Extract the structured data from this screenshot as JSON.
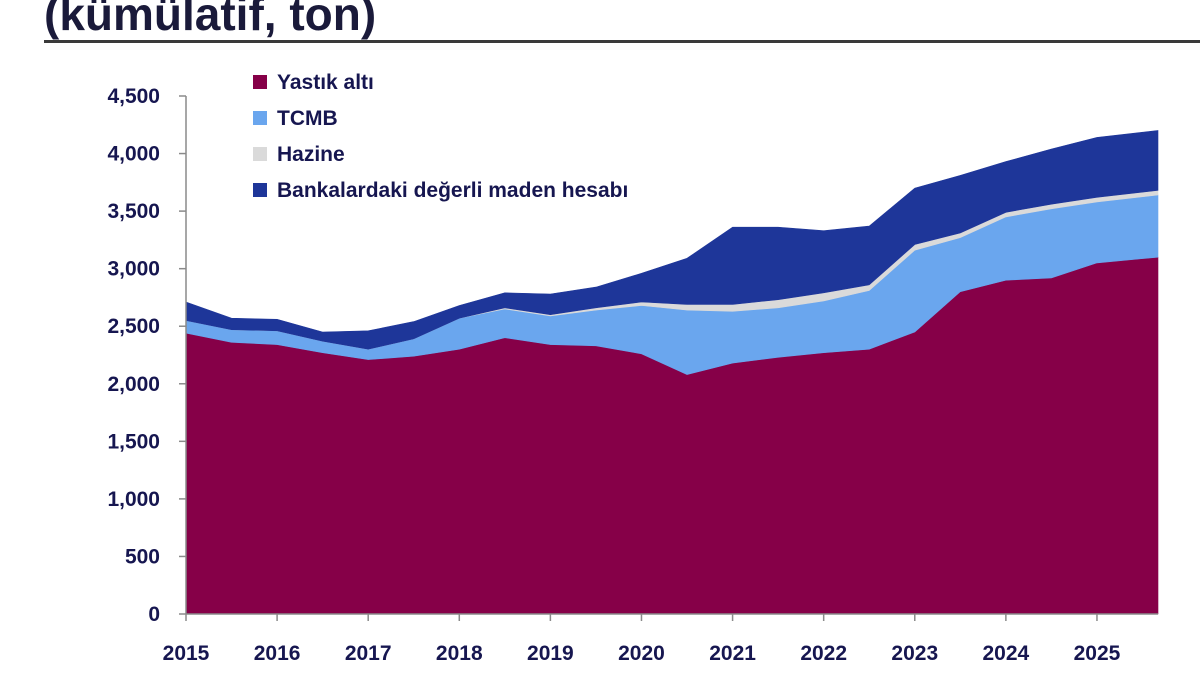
{
  "title": "(kümülatif, ton)",
  "colors": {
    "yastik": "#860048",
    "tcmb": "#6aa6ee",
    "hazine": "#dadada",
    "banka": "#1e3699",
    "axis_text": "#161650",
    "axis_line": "#8a8a8a"
  },
  "chart_data": {
    "type": "area",
    "stacked": true,
    "title": "(kümülatif, ton)",
    "xlabel": "",
    "ylabel": "",
    "xlim": [
      2015.0,
      2025.67
    ],
    "ylim": [
      0,
      4500
    ],
    "y_ticks": [
      0,
      500,
      1000,
      1500,
      2000,
      2500,
      3000,
      3500,
      4000,
      4500
    ],
    "y_tick_labels": [
      "0",
      "500",
      "1,000",
      "1,500",
      "2,000",
      "2,500",
      "3,000",
      "3,500",
      "4,000",
      "4,500"
    ],
    "x_ticks": [
      2015,
      2016,
      2017,
      2018,
      2019,
      2020,
      2021,
      2022,
      2023,
      2024,
      2025
    ],
    "x_tick_labels": [
      "2015",
      "2016",
      "2017",
      "2018",
      "2019",
      "2020",
      "2021",
      "2022",
      "2023",
      "2024",
      "2025"
    ],
    "legend_position": "top-left",
    "grid": false,
    "x": [
      2015.0,
      2015.5,
      2016.0,
      2016.5,
      2017.0,
      2017.5,
      2018.0,
      2018.5,
      2019.0,
      2019.5,
      2020.0,
      2020.5,
      2021.0,
      2021.5,
      2022.0,
      2022.5,
      2023.0,
      2023.5,
      2024.0,
      2024.5,
      2025.0,
      2025.67
    ],
    "series": [
      {
        "name": "Yastık altı",
        "key": "yastik",
        "values": [
          2440,
          2360,
          2340,
          2270,
          2210,
          2240,
          2300,
          2400,
          2340,
          2330,
          2260,
          2080,
          2180,
          2230,
          2270,
          2300,
          2450,
          2800,
          2900,
          2920,
          3050,
          3100
        ]
      },
      {
        "name": "TCMB",
        "key": "tcmb",
        "values": [
          110,
          110,
          120,
          100,
          90,
          150,
          270,
          250,
          250,
          310,
          420,
          560,
          450,
          430,
          450,
          510,
          710,
          470,
          550,
          600,
          530,
          540
        ]
      },
      {
        "name": "Hazine",
        "key": "hazine",
        "values": [
          0,
          0,
          0,
          0,
          0,
          0,
          0,
          10,
          10,
          20,
          30,
          50,
          60,
          70,
          70,
          50,
          50,
          40,
          40,
          40,
          40,
          40
        ]
      },
      {
        "name": "Bankalardaki değerli maden hesabı",
        "key": "banka",
        "values": [
          160,
          100,
          100,
          80,
          160,
          150,
          110,
          130,
          180,
          180,
          250,
          400,
          670,
          630,
          540,
          510,
          490,
          500,
          440,
          480,
          520,
          520
        ]
      }
    ]
  }
}
